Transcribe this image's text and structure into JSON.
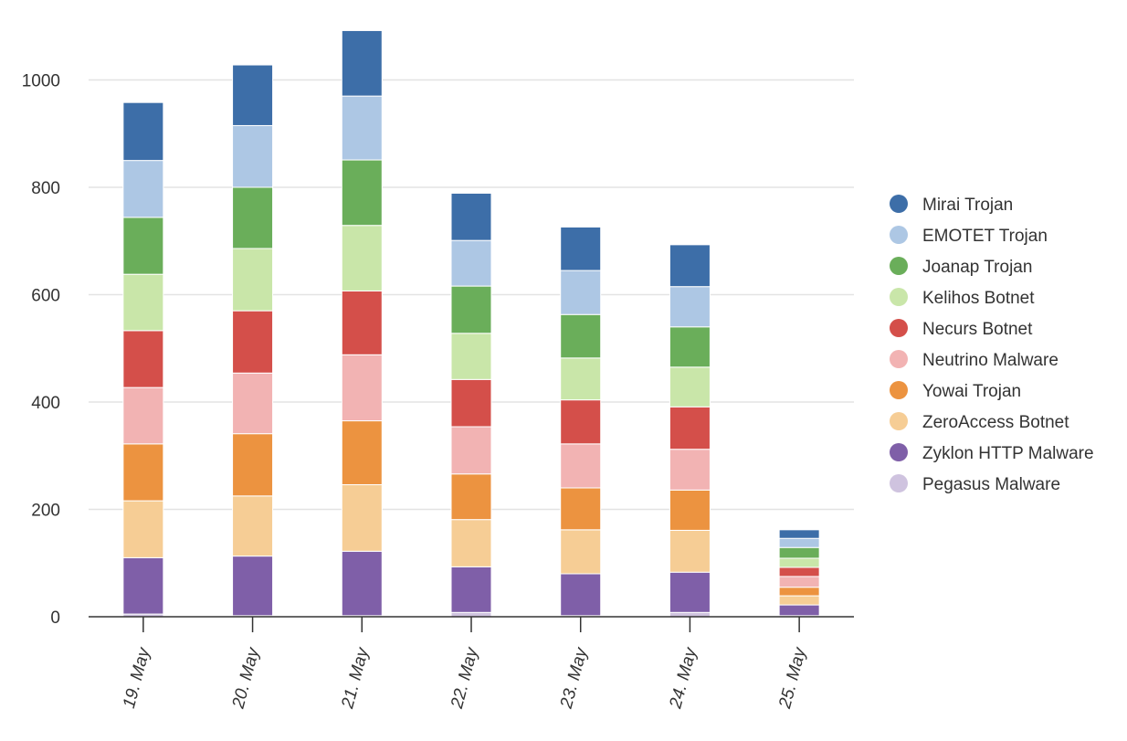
{
  "chart_data": {
    "type": "bar",
    "stacked": true,
    "title": "",
    "xlabel": "",
    "ylabel": "",
    "ylim": [
      0,
      1100
    ],
    "yticks": [
      0,
      200,
      400,
      600,
      800,
      1000
    ],
    "grid": true,
    "legend_position": "right",
    "categories": [
      "19. May",
      "20. May",
      "21. May",
      "22. May",
      "23. May",
      "24. May",
      "25. May"
    ],
    "series": [
      {
        "name": "Pegasus Malware",
        "color": "#cfc3df",
        "values": [
          5,
          2,
          2,
          8,
          2,
          8,
          2
        ]
      },
      {
        "name": "Zyklon HTTP Malware",
        "color": "#7f5fa8",
        "values": [
          105,
          111,
          120,
          85,
          78,
          75,
          20
        ]
      },
      {
        "name": "ZeroAccess Botnet",
        "color": "#f6cd95",
        "values": [
          106,
          112,
          124,
          88,
          82,
          78,
          17
        ]
      },
      {
        "name": "Yowai Trojan",
        "color": "#ec9340",
        "values": [
          106,
          116,
          119,
          85,
          78,
          75,
          16
        ]
      },
      {
        "name": "Neutrino Malware",
        "color": "#f2b3b3",
        "values": [
          105,
          113,
          123,
          88,
          82,
          76,
          20
        ]
      },
      {
        "name": "Necurs Botnet",
        "color": "#d44f4a",
        "values": [
          106,
          116,
          119,
          88,
          82,
          79,
          17
        ]
      },
      {
        "name": "Kelihos Botnet",
        "color": "#c9e6a9",
        "values": [
          105,
          116,
          122,
          86,
          78,
          74,
          17
        ]
      },
      {
        "name": "Joanap Trojan",
        "color": "#6aae5a",
        "values": [
          106,
          114,
          122,
          88,
          81,
          75,
          20
        ]
      },
      {
        "name": "EMOTET Trojan",
        "color": "#adc7e4",
        "values": [
          106,
          115,
          119,
          85,
          82,
          75,
          17
        ]
      },
      {
        "name": "Mirai Trojan",
        "color": "#3d6ea8",
        "values": [
          108,
          113,
          122,
          88,
          81,
          78,
          16
        ]
      }
    ]
  }
}
